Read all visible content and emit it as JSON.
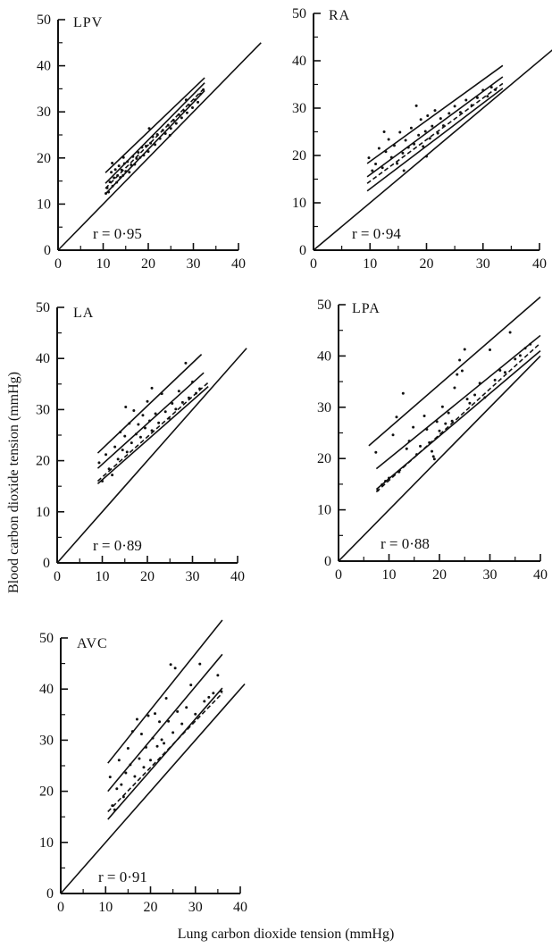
{
  "figure": {
    "ylabel": "Blood carbon dioxide tension (mmHg)",
    "xlabel": "Lung carbon dioxide tension (mmHg)"
  },
  "chart_data": [
    {
      "type": "scatter",
      "panel": "LPV",
      "r_text": "r = 0·95",
      "xlim": [
        0,
        40
      ],
      "ylim": [
        0,
        50
      ],
      "xticks": [
        0,
        10,
        20,
        30,
        40
      ],
      "yticks": [
        0,
        10,
        20,
        30,
        40,
        50
      ],
      "identity_line": [
        [
          0,
          0
        ],
        [
          45,
          45
        ]
      ],
      "fit_lines": [
        {
          "style": "solid",
          "points": [
            [
              10.5,
              12.2
            ],
            [
              32.5,
              34.6
            ]
          ]
        },
        {
          "style": "solid",
          "points": [
            [
              10.5,
              14.5
            ],
            [
              32.5,
              36.3
            ]
          ]
        },
        {
          "style": "solid",
          "points": [
            [
              10.5,
              16.8
            ],
            [
              32.5,
              37.4
            ]
          ]
        },
        {
          "style": "dashed",
          "points": [
            [
              10.5,
              13.4
            ],
            [
              32.5,
              35.2
            ]
          ]
        }
      ],
      "points": [
        [
          10.6,
          12.3
        ],
        [
          10.9,
          13.5
        ],
        [
          11.2,
          12.6
        ],
        [
          11.5,
          14.8
        ],
        [
          11.8,
          16.9
        ],
        [
          12.1,
          13.9
        ],
        [
          12.4,
          15.7
        ],
        [
          12.7,
          17.5
        ],
        [
          13.0,
          14.7
        ],
        [
          13.2,
          16.2
        ],
        [
          13.5,
          18.3
        ],
        [
          13.8,
          15.8
        ],
        [
          14.1,
          17.4
        ],
        [
          14.4,
          16.2
        ],
        [
          14.7,
          18.8
        ],
        [
          15.0,
          17.1
        ],
        [
          15.4,
          19.2
        ],
        [
          15.8,
          16.9
        ],
        [
          16.2,
          18.5
        ],
        [
          16.6,
          20.3
        ],
        [
          17.0,
          18.6
        ],
        [
          17.4,
          19.9
        ],
        [
          17.8,
          21.2
        ],
        [
          18.2,
          20.1
        ],
        [
          18.6,
          22.3
        ],
        [
          19.0,
          20.6
        ],
        [
          19.5,
          22.6
        ],
        [
          20.0,
          21.4
        ],
        [
          20.5,
          23.2
        ],
        [
          21.0,
          24.6
        ],
        [
          21.5,
          22.9
        ],
        [
          22.0,
          25.1
        ],
        [
          22.6,
          24.2
        ],
        [
          23.2,
          26.0
        ],
        [
          23.8,
          25.3
        ],
        [
          24.4,
          27.1
        ],
        [
          25.0,
          26.4
        ],
        [
          25.6,
          28.2
        ],
        [
          26.2,
          27.5
        ],
        [
          26.8,
          29.4
        ],
        [
          27.4,
          28.7
        ],
        [
          28.0,
          30.2
        ],
        [
          28.6,
          29.8
        ],
        [
          29.2,
          31.4
        ],
        [
          29.8,
          30.9
        ],
        [
          30.4,
          32.6
        ],
        [
          31.0,
          32.1
        ],
        [
          31.6,
          33.9
        ],
        [
          32.2,
          34.8
        ],
        [
          12.0,
          18.9
        ],
        [
          14.5,
          20.1
        ],
        [
          20.2,
          26.4
        ],
        [
          24.8,
          24.9
        ],
        [
          28.4,
          32.6
        ]
      ]
    },
    {
      "type": "scatter",
      "panel": "RA",
      "r_text": "r = 0·94",
      "xlim": [
        0,
        40
      ],
      "ylim": [
        0,
        50
      ],
      "xticks": [
        0,
        10,
        20,
        30,
        40
      ],
      "yticks": [
        0,
        10,
        20,
        30,
        40,
        50
      ],
      "identity_line": [
        [
          0,
          0
        ],
        [
          45,
          45
        ]
      ],
      "fit_lines": [
        {
          "style": "solid",
          "points": [
            [
              9.5,
              12.5
            ],
            [
              33.5,
              34.2
            ]
          ]
        },
        {
          "style": "solid",
          "points": [
            [
              9.5,
              15.5
            ],
            [
              33.5,
              36.6
            ]
          ]
        },
        {
          "style": "solid",
          "points": [
            [
              9.5,
              18.3
            ],
            [
              33.5,
              39.0
            ]
          ]
        },
        {
          "style": "dashed",
          "points": [
            [
              9.5,
              14.1
            ],
            [
              33.5,
              35.2
            ]
          ]
        }
      ],
      "points": [
        [
          9.8,
          19.5
        ],
        [
          10.4,
          16.8
        ],
        [
          11.0,
          18.2
        ],
        [
          11.6,
          21.5
        ],
        [
          12.2,
          17.4
        ],
        [
          12.8,
          20.8
        ],
        [
          13.3,
          23.4
        ],
        [
          13.8,
          19.6
        ],
        [
          14.3,
          22.1
        ],
        [
          14.8,
          18.3
        ],
        [
          15.3,
          24.9
        ],
        [
          15.8,
          20.5
        ],
        [
          16.3,
          23.2
        ],
        [
          16.8,
          21.7
        ],
        [
          17.3,
          25.8
        ],
        [
          17.8,
          22.4
        ],
        [
          18.2,
          30.5
        ],
        [
          18.6,
          24.3
        ],
        [
          19.0,
          27.6
        ],
        [
          19.4,
          21.9
        ],
        [
          19.8,
          25.1
        ],
        [
          20.2,
          28.4
        ],
        [
          20.6,
          23.6
        ],
        [
          21.0,
          26.2
        ],
        [
          21.5,
          29.5
        ],
        [
          22.0,
          24.7
        ],
        [
          22.5,
          27.8
        ],
        [
          23.0,
          26.3
        ],
        [
          24.0,
          28.9
        ],
        [
          25.0,
          30.4
        ],
        [
          26.0,
          29.1
        ],
        [
          27.0,
          31.7
        ],
        [
          28.0,
          30.6
        ],
        [
          29.0,
          32.2
        ],
        [
          30.0,
          33.8
        ],
        [
          30.8,
          32.5
        ],
        [
          31.5,
          34.4
        ],
        [
          32.2,
          33.9
        ],
        [
          16.0,
          16.8
        ],
        [
          12.5,
          25.0
        ],
        [
          20.0,
          19.8
        ]
      ]
    },
    {
      "type": "scatter",
      "panel": "LA",
      "r_text": "r = 0·89",
      "xlim": [
        0,
        40
      ],
      "ylim": [
        0,
        50
      ],
      "xticks": [
        0,
        10,
        20,
        30,
        40
      ],
      "yticks": [
        0,
        10,
        20,
        30,
        40,
        50
      ],
      "identity_line": [
        [
          0,
          0
        ],
        [
          42,
          42
        ]
      ],
      "fit_lines": [
        {
          "style": "solid",
          "points": [
            [
              9.0,
              15.5
            ],
            [
              33.5,
              34.5
            ]
          ]
        },
        {
          "style": "solid",
          "points": [
            [
              9.0,
              18.5
            ],
            [
              32.5,
              37.2
            ]
          ]
        },
        {
          "style": "solid",
          "points": [
            [
              9.0,
              21.5
            ],
            [
              32.0,
              40.8
            ]
          ]
        },
        {
          "style": "dashed",
          "points": [
            [
              9.0,
              16.0
            ],
            [
              33.5,
              35.3
            ]
          ]
        }
      ],
      "points": [
        [
          9.3,
          19.6
        ],
        [
          10.0,
          16.0
        ],
        [
          10.8,
          21.2
        ],
        [
          11.5,
          18.4
        ],
        [
          12.2,
          17.2
        ],
        [
          12.8,
          22.7
        ],
        [
          13.5,
          20.3
        ],
        [
          14.0,
          25.6
        ],
        [
          14.5,
          22.1
        ],
        [
          15.0,
          24.8
        ],
        [
          15.5,
          21.7
        ],
        [
          16.0,
          27.3
        ],
        [
          16.5,
          23.5
        ],
        [
          17.0,
          29.8
        ],
        [
          17.5,
          25.2
        ],
        [
          18.0,
          27.1
        ],
        [
          18.5,
          24.6
        ],
        [
          19.0,
          28.9
        ],
        [
          19.5,
          26.4
        ],
        [
          20.0,
          31.6
        ],
        [
          20.5,
          27.8
        ],
        [
          21.0,
          25.9
        ],
        [
          21.8,
          29.2
        ],
        [
          22.5,
          27.4
        ],
        [
          23.2,
          33.1
        ],
        [
          24.0,
          29.6
        ],
        [
          24.8,
          28.3
        ],
        [
          25.5,
          31.2
        ],
        [
          26.3,
          30.1
        ],
        [
          27.0,
          33.6
        ],
        [
          27.8,
          31.4
        ],
        [
          28.5,
          39.1
        ],
        [
          29.2,
          32.3
        ],
        [
          30.0,
          35.4
        ],
        [
          30.8,
          33.2
        ],
        [
          31.6,
          34.1
        ],
        [
          15.2,
          30.5
        ],
        [
          21.0,
          34.2
        ]
      ]
    },
    {
      "type": "scatter",
      "panel": "LPA",
      "r_text": "r = 0·88",
      "xlim": [
        0,
        40
      ],
      "ylim": [
        0,
        50
      ],
      "xticks": [
        0,
        10,
        20,
        30,
        40
      ],
      "yticks": [
        0,
        10,
        20,
        30,
        40,
        50
      ],
      "identity_line": [
        [
          0,
          0
        ],
        [
          40,
          40
        ]
      ],
      "fit_lines": [
        {
          "style": "solid",
          "points": [
            [
              6.0,
              22.5
            ],
            [
              40.0,
              51.5
            ]
          ]
        },
        {
          "style": "solid",
          "points": [
            [
              7.5,
              18.0
            ],
            [
              40.0,
              44.0
            ]
          ]
        },
        {
          "style": "solid",
          "points": [
            [
              7.5,
              14.0
            ],
            [
              40.0,
              41.0
            ]
          ]
        },
        {
          "style": "dashed",
          "points": [
            [
              7.5,
              13.5
            ],
            [
              40.0,
              42.5
            ]
          ]
        }
      ],
      "points": [
        [
          7.4,
          21.2
        ],
        [
          7.8,
          13.8
        ],
        [
          8.6,
          14.9
        ],
        [
          9.3,
          15.6
        ],
        [
          10.0,
          16.2
        ],
        [
          10.8,
          24.6
        ],
        [
          11.5,
          28.1
        ],
        [
          12.0,
          17.4
        ],
        [
          12.8,
          32.7
        ],
        [
          13.5,
          21.9
        ],
        [
          14.0,
          23.4
        ],
        [
          14.8,
          26.1
        ],
        [
          15.5,
          20.8
        ],
        [
          16.2,
          22.4
        ],
        [
          17.0,
          28.3
        ],
        [
          17.5,
          25.7
        ],
        [
          18.0,
          23.1
        ],
        [
          18.5,
          21.4
        ],
        [
          19.0,
          19.9
        ],
        [
          19.5,
          27.2
        ],
        [
          20.0,
          25.4
        ],
        [
          20.6,
          30.1
        ],
        [
          21.2,
          26.8
        ],
        [
          21.8,
          28.9
        ],
        [
          22.5,
          27.3
        ],
        [
          23.0,
          33.8
        ],
        [
          23.5,
          36.4
        ],
        [
          24.0,
          39.2
        ],
        [
          24.5,
          37.1
        ],
        [
          25.0,
          41.3
        ],
        [
          25.5,
          31.6
        ],
        [
          26.0,
          30.8
        ],
        [
          27.0,
          32.4
        ],
        [
          28.0,
          34.7
        ],
        [
          29.0,
          31.9
        ],
        [
          30.0,
          41.2
        ],
        [
          31.0,
          35.3
        ],
        [
          32.0,
          37.2
        ],
        [
          33.0,
          36.8
        ],
        [
          34.0,
          44.6
        ],
        [
          35.0,
          39.4
        ],
        [
          36.0,
          40.1
        ],
        [
          37.0,
          41.5
        ],
        [
          38.0,
          42.3
        ],
        [
          18.8,
          20.4
        ]
      ]
    },
    {
      "type": "scatter",
      "panel": "AVC",
      "r_text": "r = 0·91",
      "xlim": [
        0,
        40
      ],
      "ylim": [
        0,
        50
      ],
      "xticks": [
        0,
        10,
        20,
        30,
        40
      ],
      "yticks": [
        0,
        10,
        20,
        30,
        40,
        50
      ],
      "identity_line": [
        [
          0,
          0
        ],
        [
          41,
          41
        ]
      ],
      "fit_lines": [
        {
          "style": "solid",
          "points": [
            [
              10.5,
              14.5
            ],
            [
              36.0,
              40.2
            ]
          ]
        },
        {
          "style": "solid",
          "points": [
            [
              10.5,
              20.0
            ],
            [
              36.0,
              46.8
            ]
          ]
        },
        {
          "style": "solid",
          "points": [
            [
              10.5,
              25.5
            ],
            [
              36.0,
              53.5
            ]
          ]
        },
        {
          "style": "dashed",
          "points": [
            [
              10.5,
              16.0
            ],
            [
              36.0,
              39.2
            ]
          ]
        }
      ],
      "points": [
        [
          11.0,
          22.8
        ],
        [
          11.5,
          17.2
        ],
        [
          12.0,
          16.4
        ],
        [
          12.5,
          20.5
        ],
        [
          13.0,
          26.1
        ],
        [
          13.5,
          21.3
        ],
        [
          14.0,
          18.9
        ],
        [
          14.5,
          23.6
        ],
        [
          15.0,
          28.4
        ],
        [
          15.5,
          25.2
        ],
        [
          16.0,
          31.7
        ],
        [
          16.5,
          22.9
        ],
        [
          17.0,
          34.1
        ],
        [
          17.5,
          26.4
        ],
        [
          18.0,
          31.2
        ],
        [
          18.5,
          24.7
        ],
        [
          19.0,
          28.6
        ],
        [
          19.5,
          34.8
        ],
        [
          20.0,
          26.1
        ],
        [
          20.5,
          30.4
        ],
        [
          21.0,
          35.2
        ],
        [
          21.5,
          28.8
        ],
        [
          22.0,
          33.6
        ],
        [
          22.5,
          30.1
        ],
        [
          23.0,
          29.4
        ],
        [
          23.5,
          38.2
        ],
        [
          24.0,
          33.7
        ],
        [
          24.5,
          44.8
        ],
        [
          25.0,
          31.5
        ],
        [
          25.5,
          44.1
        ],
        [
          26.0,
          35.6
        ],
        [
          27.0,
          33.2
        ],
        [
          28.0,
          36.4
        ],
        [
          29.0,
          40.8
        ],
        [
          30.0,
          35.1
        ],
        [
          31.0,
          44.9
        ],
        [
          32.0,
          37.6
        ],
        [
          33.0,
          38.4
        ],
        [
          34.0,
          39.2
        ],
        [
          35.0,
          42.7
        ],
        [
          35.8,
          39.5
        ]
      ]
    }
  ]
}
